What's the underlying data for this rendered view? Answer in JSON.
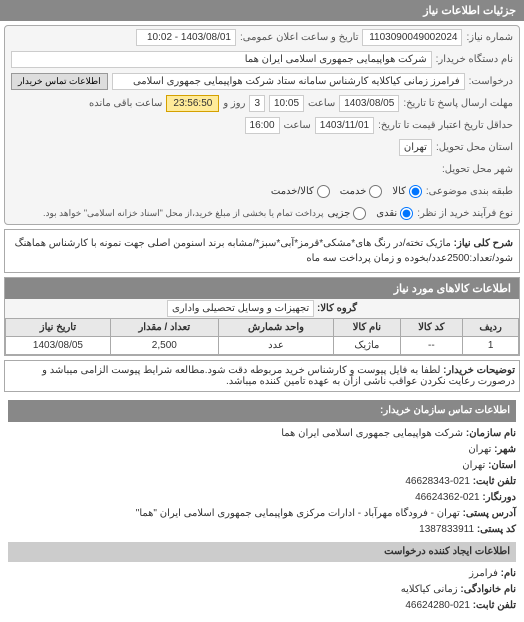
{
  "header": {
    "title": "جزئیات اطلاعات نیاز"
  },
  "fields": {
    "ref_number_label": "شماره نیاز:",
    "ref_number": "1103090049002024",
    "datetime_label": "تاریخ و ساعت اعلان عمومی:",
    "datetime": "1403/08/01 - 10:02",
    "requester_name_label": "نام دستگاه خریدار:",
    "requester_name": "شرکت هواپیمایی جمهوری اسلامی ایران هما",
    "request_label": "درخواست:",
    "request_value": "فرامرز زمانی کیاکلایه کارشناس سامانه ستاد شرکت هواپیمایی جمهوری اسلامی",
    "contact_btn": "اطلاعات تماس خریدار",
    "deadline_label": "مهلت ارسال پاسخ تا تاریخ:",
    "deadline_date": "1403/08/05",
    "deadline_time_label": "ساعت",
    "deadline_time": "10:05",
    "remaining_days": "3",
    "remaining_days_label": "روز و",
    "remaining_time": "23:56:50",
    "remaining_suffix": "ساعت باقی مانده",
    "validity_label": "حداقل تاریخ اعتبار قیمت تا تاریخ:",
    "validity_date": "1403/11/01",
    "validity_time_label": "ساعت",
    "validity_time": "16:00",
    "province_label": "استان محل تحویل:",
    "province": "تهران",
    "city_label": "شهر محل تحویل:",
    "classification_label": "طبقه بندی موضوعی:",
    "goods": "کالا",
    "service": "خدمت",
    "goods_service": "کالا/خدمت",
    "payment_type_label": "نوع فرآیند خرید از نظر:",
    "cash": "نقدی",
    "partial": "جزیی",
    "partial_note": "پرداخت تمام یا بخشی از مبلغ خرید،از محل \"اسناد خزانه اسلامی\" خواهد بود."
  },
  "description": {
    "label": "شرح کلی نیاز:",
    "text": "ماژیک تخته/در رنگ های*مشکی*قرمز*آبی*سبز*/مشابه برند اسنومن اصلی جهت نمونه با کارشناس هماهنگ شود/تعداد:2500عدد/بخوده و زمان پرداخت سه ماه"
  },
  "goods_section": {
    "title": "اطلاعات کالاهای مورد نیاز",
    "group_label": "گروه کالا:",
    "group_value": "تجهیزات و وسایل تحصیلی واداری"
  },
  "table": {
    "columns": [
      "ردیف",
      "کد کالا",
      "نام کالا",
      "واحد شمارش",
      "تعداد / مقدار",
      "تاریخ نیاز"
    ],
    "rows": [
      [
        "1",
        "--",
        "ماژیک",
        "عدد",
        "2,500",
        "1403/08/05"
      ]
    ]
  },
  "notes": {
    "label": "توضیحات خریدار:",
    "text": "لطفا به فایل پیوست و کارشناس خرید مربوطه دقت شود.مطالعه شرایط پیوست الزامی میباشد و درصورت رعایت نکردن عواقب ناشی ازآن به عهده تامین کننده میباشد."
  },
  "contact": {
    "header": "اطلاعات تماس سازمان خریدار:",
    "org_label": "نام سازمان:",
    "org": "شرکت هواپیمایی جمهوری اسلامی ایران هما",
    "city_label": "شهر:",
    "city": "تهران",
    "province_label": "استان:",
    "province": "تهران",
    "phone_label": "تلفن ثابت:",
    "phone": "021-46628343",
    "fax_label": "دورنگار:",
    "fax": "021-46624362",
    "address_label": "آدرس پستی:",
    "address": "تهران - فرودگاه مهرآباد - ادارات مرکزی هواپیمایی جمهوری اسلامی ایران \"هما\"",
    "postal_label": "کد پستی:",
    "postal": "1387833911",
    "creator_header": "اطلاعات ایجاد کننده درخواست",
    "name_label": "نام:",
    "name": "فرامرز",
    "family_label": "نام خانوادگی:",
    "family": "زمانی کیاکلایه",
    "phone2_label": "تلفن ثابت:",
    "phone2": "021-46624280"
  }
}
